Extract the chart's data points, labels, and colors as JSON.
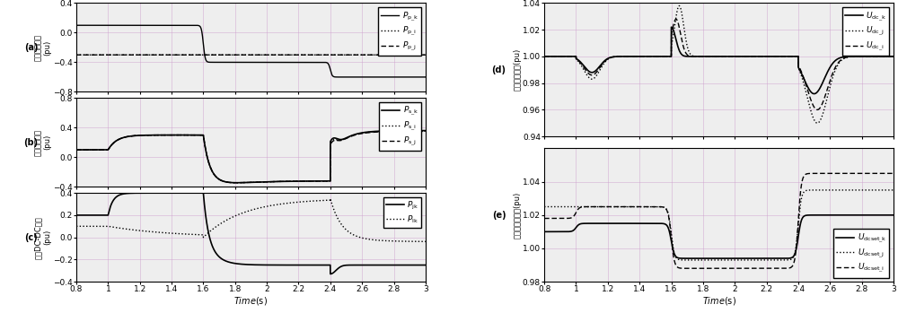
{
  "xlim": [
    0.8,
    3.0
  ],
  "xticks": [
    0.8,
    1.0,
    1.2,
    1.4,
    1.6,
    1.8,
    2.0,
    2.2,
    2.4,
    2.6,
    2.8,
    3.0
  ],
  "panel_a": {
    "label": "(a)",
    "ylabel_zh": "功率单元输出",
    "ylabel_en": "(pu)",
    "ylim": [
      -0.8,
      0.4
    ],
    "yticks": [
      -0.8,
      -0.4,
      0.0,
      0.4
    ]
  },
  "panel_b": {
    "label": "(b)",
    "ylabel_zh": "平衡单元输出",
    "ylabel_en": "(pu)",
    "ylim": [
      -0.4,
      0.8
    ],
    "yticks": [
      -0.4,
      0.0,
      0.4,
      0.8
    ]
  },
  "panel_c": {
    "label": "(c)",
    "ylabel_zh": "隔离DC-DC输出",
    "ylabel_en": "(pu)",
    "ylim": [
      -0.4,
      0.4
    ],
    "yticks": [
      -0.4,
      -0.2,
      0.0,
      0.2,
      0.4
    ]
  },
  "panel_d": {
    "label": "(d)",
    "ylabel_zh": "母线直流电压(pu)",
    "ylim": [
      0.94,
      1.04
    ],
    "yticks": [
      0.94,
      0.96,
      0.98,
      1.0,
      1.02,
      1.04
    ]
  },
  "panel_e": {
    "label": "(e)",
    "ylabel_zh": "直流电压设定値(pu)",
    "ylim": [
      0.98,
      1.06
    ],
    "yticks": [
      0.98,
      1.0,
      1.02,
      1.04
    ]
  },
  "grid_color": "#cc99cc",
  "grid_alpha": 0.6,
  "bg_color": "#eeeeee",
  "tick_fontsize": 6.5,
  "label_fontsize": 6.5,
  "legend_fontsize": 6.5
}
